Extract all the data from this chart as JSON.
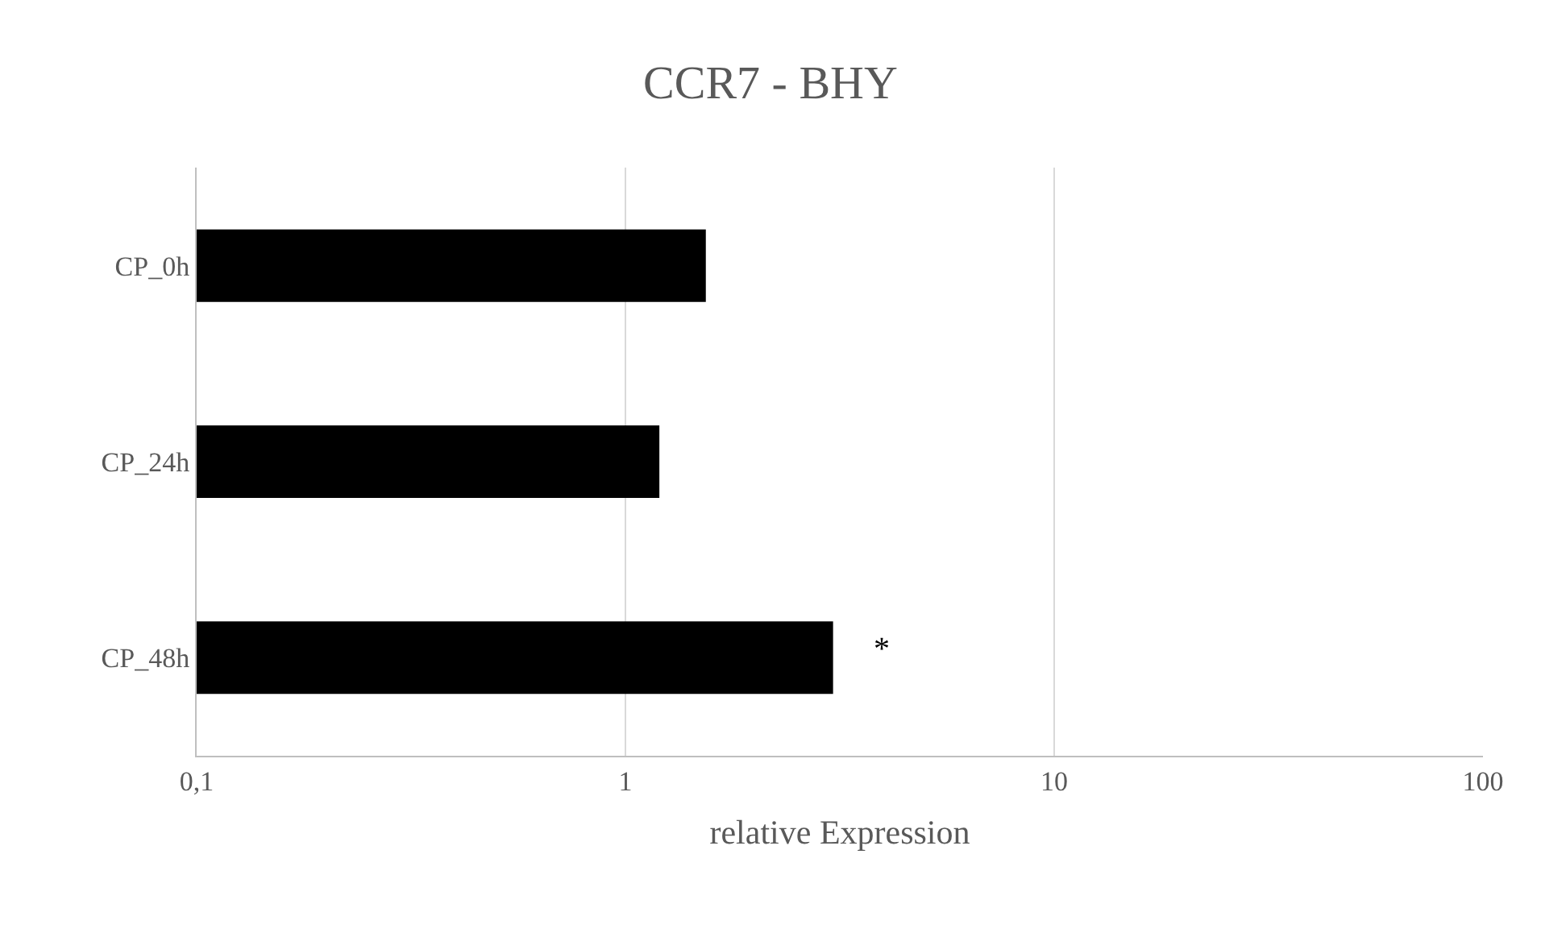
{
  "chart_data": {
    "type": "bar",
    "orientation": "horizontal",
    "title": "CCR7 - BHY",
    "xlabel": "relative Expression",
    "categories": [
      "CP_0h",
      "CP_24h",
      "CP_48h"
    ],
    "values": [
      1.54,
      1.2,
      3.05
    ],
    "color": "#000000",
    "log": "x",
    "xlim": [
      0.1,
      100
    ],
    "xticks": [
      {
        "value": 0.1,
        "label": "0,1"
      },
      1,
      10,
      100
    ],
    "grid": "x",
    "annotations": [
      "*"
    ]
  }
}
